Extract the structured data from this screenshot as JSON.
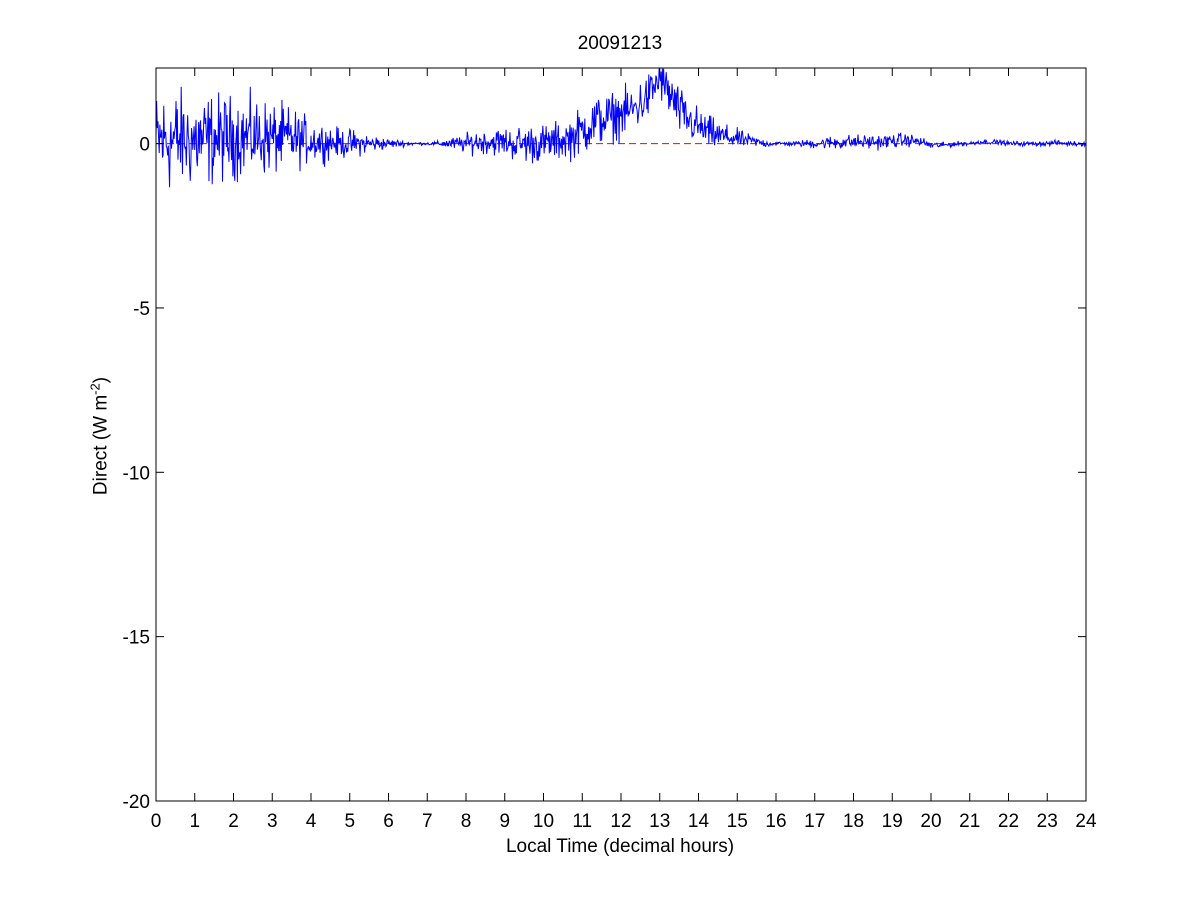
{
  "chart_data": {
    "type": "line",
    "title": "20091213",
    "xlabel": "Local Time (decimal hours)",
    "ylabel_main": "Direct (W m",
    "ylabel_sup": "-2",
    "ylabel_close": ")",
    "xlim": [
      0,
      24
    ],
    "ylim": [
      -20,
      2.3
    ],
    "xticks": [
      0,
      1,
      2,
      3,
      4,
      5,
      6,
      7,
      8,
      9,
      10,
      11,
      12,
      13,
      14,
      15,
      16,
      17,
      18,
      19,
      20,
      21,
      22,
      23,
      24
    ],
    "yticks": [
      0,
      -5,
      -10,
      -15,
      -20
    ],
    "grid": false,
    "colors": {
      "series": "#0000ff",
      "reference": "#ff0000",
      "axes": "#000000"
    },
    "reference_line": {
      "y": 0,
      "style": "dashed"
    },
    "series": [
      {
        "x": [
          0,
          0.25,
          0.5,
          0.75,
          1,
          1.25,
          1.5,
          1.75,
          2,
          2.25,
          2.5,
          2.75,
          3,
          3.25,
          3.5,
          3.75,
          4,
          4.25,
          4.5,
          4.75,
          5,
          5.25,
          5.5,
          5.75,
          6,
          6.25,
          6.5,
          6.75,
          7,
          7.25,
          7.5,
          7.75,
          8,
          8.25,
          8.5,
          8.75,
          9,
          9.25,
          9.5,
          9.75,
          10,
          10.25,
          10.5,
          10.75,
          11,
          11.25,
          11.5,
          11.75,
          12,
          12.25,
          12.5,
          12.75,
          13,
          13.25,
          13.5,
          13.75,
          14,
          14.25,
          14.5,
          14.75,
          15,
          15.25,
          15.5,
          15.75,
          16,
          16.25,
          16.5,
          16.75,
          17,
          17.25,
          17.5,
          17.75,
          18,
          18.25,
          18.5,
          18.75,
          19,
          19.25,
          19.5,
          19.75,
          20,
          20.25,
          20.5,
          20.75,
          21,
          21.25,
          21.5,
          21.75,
          22,
          22.25,
          22.5,
          22.75,
          23,
          23.25,
          23.5,
          23.75,
          24
        ],
        "mean": [
          0.1,
          0.1,
          0.1,
          0.1,
          0.1,
          0.1,
          0.15,
          0.15,
          0.2,
          0.2,
          0.2,
          0.2,
          0.15,
          0.15,
          0.15,
          0.1,
          0.1,
          0.05,
          0.05,
          0,
          0,
          0,
          0,
          0,
          0,
          0,
          0,
          0,
          0,
          0,
          0,
          0,
          0,
          0.05,
          0.05,
          0.05,
          0.05,
          0,
          0,
          0,
          0,
          0.05,
          0.1,
          0.2,
          0.4,
          0.6,
          0.75,
          0.8,
          0.9,
          1.0,
          1.2,
          1.5,
          2.0,
          1.5,
          1.0,
          0.7,
          0.5,
          0.35,
          0.25,
          0.2,
          0.15,
          0.1,
          0.05,
          0,
          0,
          0,
          0,
          0,
          0,
          0.02,
          0.03,
          0.05,
          0.05,
          0.05,
          0.05,
          0.05,
          0.08,
          0.1,
          0.1,
          0.05,
          -0.05,
          -0.05,
          -0.03,
          0,
          0,
          0.05,
          0.05,
          0.05,
          0,
          0,
          0,
          0,
          0,
          0.03,
          0,
          0,
          0
        ],
        "amplitude": [
          1.0,
          1.1,
          1.1,
          1.0,
          1.0,
          0.95,
          0.95,
          0.9,
          0.85,
          0.85,
          0.8,
          0.8,
          0.75,
          0.7,
          0.65,
          0.55,
          0.45,
          0.4,
          0.35,
          0.3,
          0.3,
          0.25,
          0.2,
          0.15,
          0.1,
          0.08,
          0.05,
          0.03,
          0.03,
          0.05,
          0.1,
          0.15,
          0.2,
          0.25,
          0.25,
          0.28,
          0.3,
          0.35,
          0.4,
          0.4,
          0.4,
          0.4,
          0.4,
          0.45,
          0.5,
          0.55,
          0.55,
          0.5,
          0.5,
          0.5,
          0.5,
          0.5,
          0.45,
          0.5,
          0.5,
          0.45,
          0.4,
          0.35,
          0.3,
          0.25,
          0.2,
          0.15,
          0.1,
          0.08,
          0.05,
          0.05,
          0.05,
          0.08,
          0.1,
          0.12,
          0.15,
          0.15,
          0.15,
          0.15,
          0.15,
          0.15,
          0.15,
          0.15,
          0.12,
          0.1,
          0.08,
          0.06,
          0.05,
          0.05,
          0.05,
          0.05,
          0.05,
          0.05,
          0.05,
          0.05,
          0.05,
          0.05,
          0.05,
          0.05,
          0.05,
          0.05,
          0.05
        ]
      }
    ]
  }
}
